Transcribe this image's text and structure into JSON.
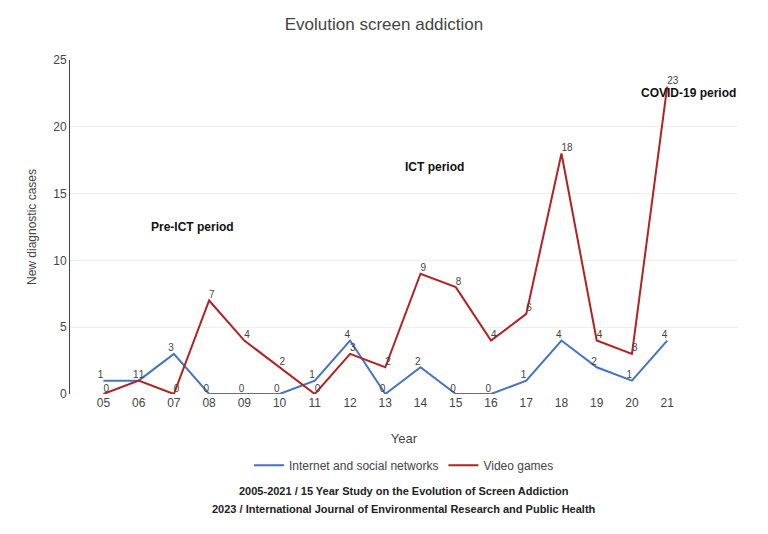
{
  "chart_data": {
    "type": "line",
    "title": "Evolution screen addiction",
    "xlabel": "Year",
    "ylabel": "New diagnostic cases",
    "categories": [
      "05",
      "06",
      "07",
      "08",
      "09",
      "10",
      "11",
      "12",
      "13",
      "14",
      "15",
      "16",
      "17",
      "18",
      "19",
      "20",
      "21"
    ],
    "series": [
      {
        "name": "Internet and social networks",
        "color": "#4472C4",
        "values": [
          1,
          1,
          3,
          0,
          0,
          0,
          1,
          4,
          0,
          2,
          0,
          0,
          1,
          4,
          2,
          1,
          4
        ]
      },
      {
        "name": "Video games",
        "color": "#B22222",
        "values": [
          0,
          1,
          0,
          7,
          4,
          2,
          0,
          3,
          2,
          9,
          8,
          4,
          6,
          18,
          4,
          3,
          23
        ]
      }
    ],
    "ylim": [
      0,
      25
    ],
    "yticks": [
      0,
      5,
      10,
      15,
      20,
      25
    ],
    "grid": true,
    "data_labels": true,
    "legend": "bottom",
    "annotations": [
      {
        "text": "Pre-ICT period",
        "x": 1.3,
        "y": 12.5
      },
      {
        "text": "ICT period",
        "x": 8.5,
        "y": 17
      },
      {
        "text": "COVID-19 period",
        "x": 15.2,
        "y": 22.5
      },
      {
        "text": "2005-2021 / 15 Year Study on the Evolution of Screen Addiction"
      },
      {
        "text": "2023 / International Journal of Environmental Research and Public Health"
      }
    ]
  }
}
